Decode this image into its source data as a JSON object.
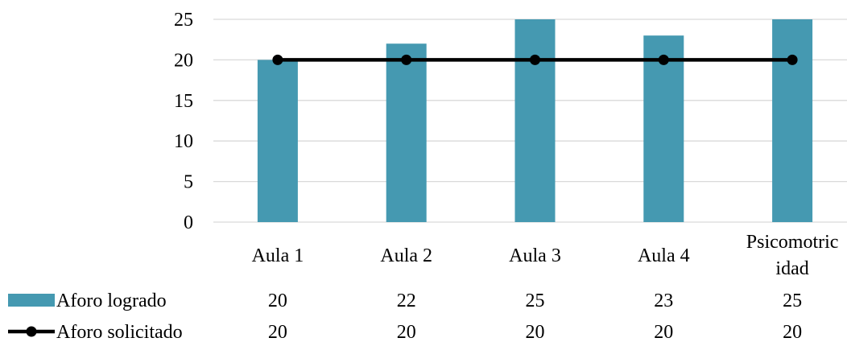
{
  "chart_data": {
    "type": "bar",
    "title": "",
    "xlabel": "",
    "ylabel": "",
    "ylim": [
      0,
      25
    ],
    "yticks": [
      0,
      5,
      10,
      15,
      20,
      25
    ],
    "grid": true,
    "categories": [
      [
        "Aula 1"
      ],
      [
        "Aula 2"
      ],
      [
        "Aula 3"
      ],
      [
        "Aula 4"
      ],
      [
        "Psicomotric",
        "idad"
      ]
    ],
    "series": [
      {
        "name": "Aforo logrado",
        "kind": "bar",
        "color": "#4599B1",
        "values": [
          20,
          22,
          25,
          23,
          25
        ]
      },
      {
        "name": "Aforo solicitado",
        "kind": "line",
        "color": "#000000",
        "values": [
          20,
          20,
          20,
          20,
          20
        ]
      }
    ],
    "legend": "data-table-below"
  }
}
